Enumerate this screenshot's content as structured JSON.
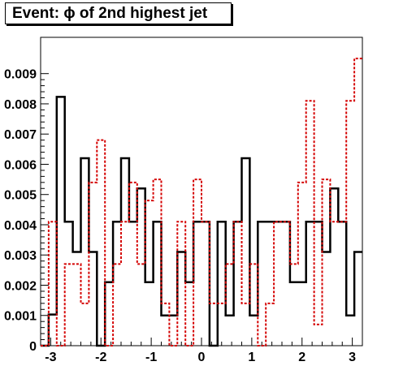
{
  "chart_data": {
    "type": "histogram",
    "title": "Event: ϕ of 2nd highest jet",
    "xlabel": "",
    "ylabel": "",
    "xlim": [
      -3.2,
      3.2
    ],
    "ylim": [
      0,
      0.0102
    ],
    "x_ticks": [
      -3,
      -2,
      -1,
      0,
      1,
      2,
      3
    ],
    "x_tick_labels": [
      "-3",
      "-2",
      "-1",
      "0",
      "1",
      "2",
      "3"
    ],
    "y_ticks": [
      0,
      0.001,
      0.002,
      0.003,
      0.004,
      0.005,
      0.006,
      0.007,
      0.008,
      0.009
    ],
    "y_tick_labels": [
      "0",
      "0.001",
      "0.002",
      "0.003",
      "0.004",
      "0.005",
      "0.006",
      "0.007",
      "0.008",
      "0.009"
    ],
    "bins": {
      "edges": [
        -3.2,
        -3.04,
        -2.88,
        -2.72,
        -2.56,
        -2.4,
        -2.24,
        -2.08,
        -1.92,
        -1.76,
        -1.6,
        -1.44,
        -1.28,
        -1.12,
        -0.96,
        -0.8,
        -0.64,
        -0.48,
        -0.32,
        -0.16,
        0.0,
        0.16,
        0.32,
        0.48,
        0.64,
        0.8,
        0.96,
        1.12,
        1.28,
        1.44,
        1.6,
        1.76,
        1.92,
        2.08,
        2.24,
        2.4,
        2.56,
        2.72,
        2.88,
        3.04,
        3.2
      ]
    },
    "series": [
      {
        "color": "#000000",
        "style": "solid",
        "values": [
          0,
          0.00103,
          0.00823,
          0.0041,
          0.0031,
          0.0062,
          0.0031,
          0,
          0.0021,
          0.0041,
          0.0062,
          0.0041,
          0.0052,
          0.0021,
          0.0041,
          0.001,
          0.001,
          0.0031,
          0.0021,
          0.0041,
          0.0041,
          0,
          0.0041,
          0.001,
          0.0041,
          0.0062,
          0.001,
          0.0041,
          0.0041,
          0.0041,
          0.0041,
          0.0021,
          0.0021,
          0.0041,
          0.0041,
          0.0031,
          0.0052,
          0.0041,
          0.001,
          0.0031,
          0.0031
        ]
      },
      {
        "color": "#d40000",
        "style": "dashed",
        "values": [
          0,
          0.0041,
          0,
          0.0027,
          0.0027,
          0.0014,
          0.0054,
          0.0068,
          0,
          0.0027,
          0.0041,
          0.0054,
          0.0027,
          0.0048,
          0.0055,
          0.0014,
          0,
          0.0041,
          0,
          0.0055,
          0.0041,
          0.0014,
          0.0014,
          0.0027,
          0.0041,
          0.0014,
          0.0027,
          0,
          0.0014,
          0.0041,
          0.0041,
          0.0027,
          0.0054,
          0.0081,
          0.0007,
          0.0055,
          0.0041,
          0.0041,
          0.0081,
          0.0095,
          0.0054
        ]
      }
    ]
  }
}
